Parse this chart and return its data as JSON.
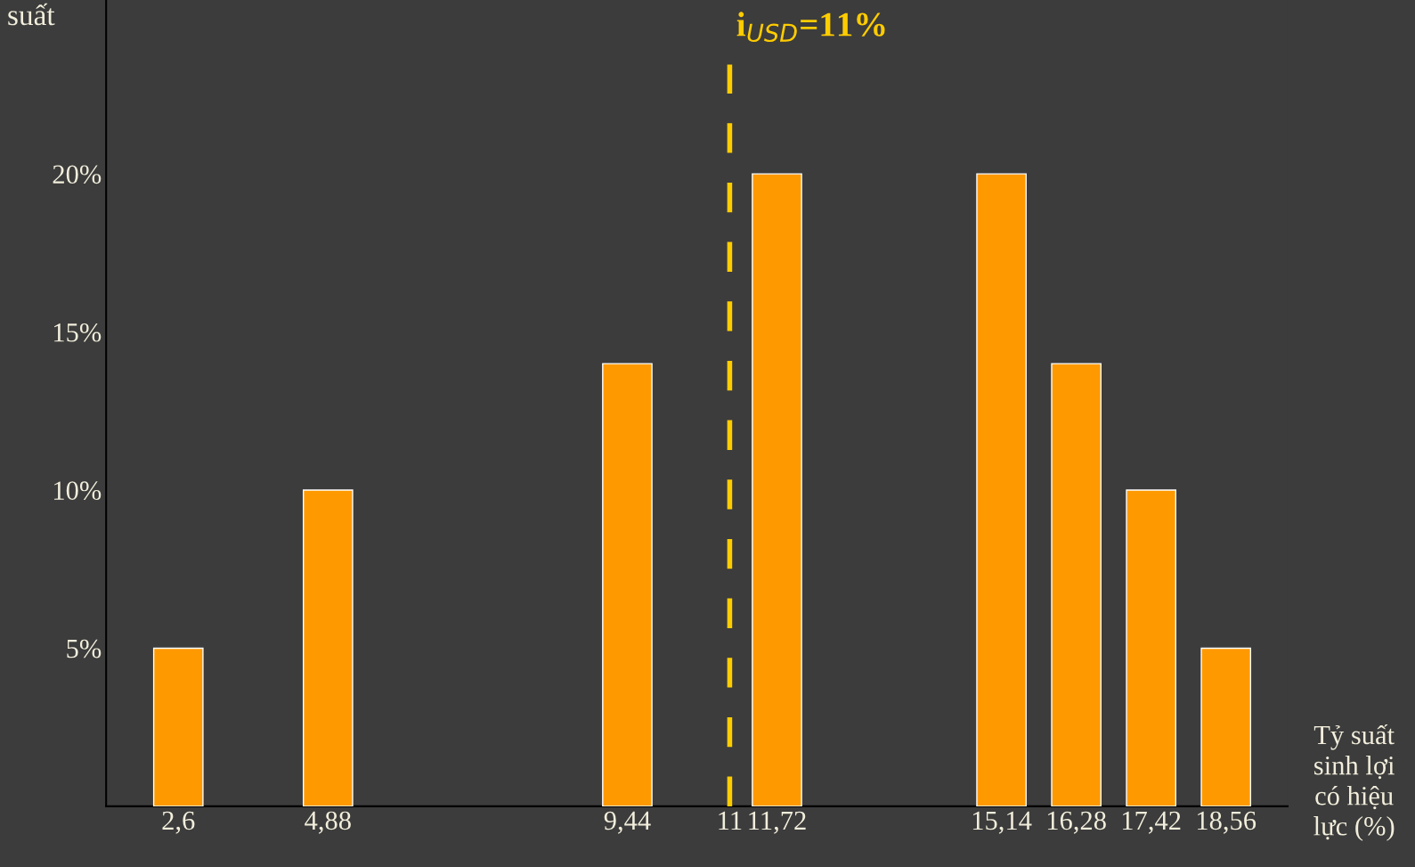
{
  "chart_data": {
    "type": "bar",
    "ylabel": "suất",
    "xlabel": "Tỷ suất sinh lợi có hiệu lực (%)",
    "x": [
      2.6,
      4.88,
      9.44,
      11.72,
      15.14,
      16.28,
      17.42,
      18.56
    ],
    "values": [
      5,
      10,
      14,
      20,
      20,
      14,
      10,
      5
    ],
    "color": "#ff9900",
    "xlim": [
      1.5,
      19.5
    ],
    "xticks": [
      {
        "value": 2.6,
        "label": "2,6"
      },
      {
        "value": 4.88,
        "label": "4,88"
      },
      {
        "value": 9.44,
        "label": "9,44"
      },
      {
        "value": 11,
        "label": "11"
      },
      {
        "value": 11.72,
        "label": "11,72"
      },
      {
        "value": 15.14,
        "label": "15,14"
      },
      {
        "value": 16.28,
        "label": "16,28"
      },
      {
        "value": 17.42,
        "label": "17,42"
      },
      {
        "value": 18.56,
        "label": "18,56"
      }
    ],
    "ylim": [
      0,
      25.5
    ],
    "yticks": [
      {
        "value": 5,
        "label": "5%"
      },
      {
        "value": 10,
        "label": "10%"
      },
      {
        "value": 15,
        "label": "15%"
      },
      {
        "value": 20,
        "label": "20%"
      }
    ],
    "ref_lines": [
      {
        "axis": "x",
        "value": 11,
        "label": "i$_{USD}$=11%",
        "color": "#ffcc00",
        "line_style": "dashed"
      }
    ],
    "grid": false,
    "legend": false
  }
}
